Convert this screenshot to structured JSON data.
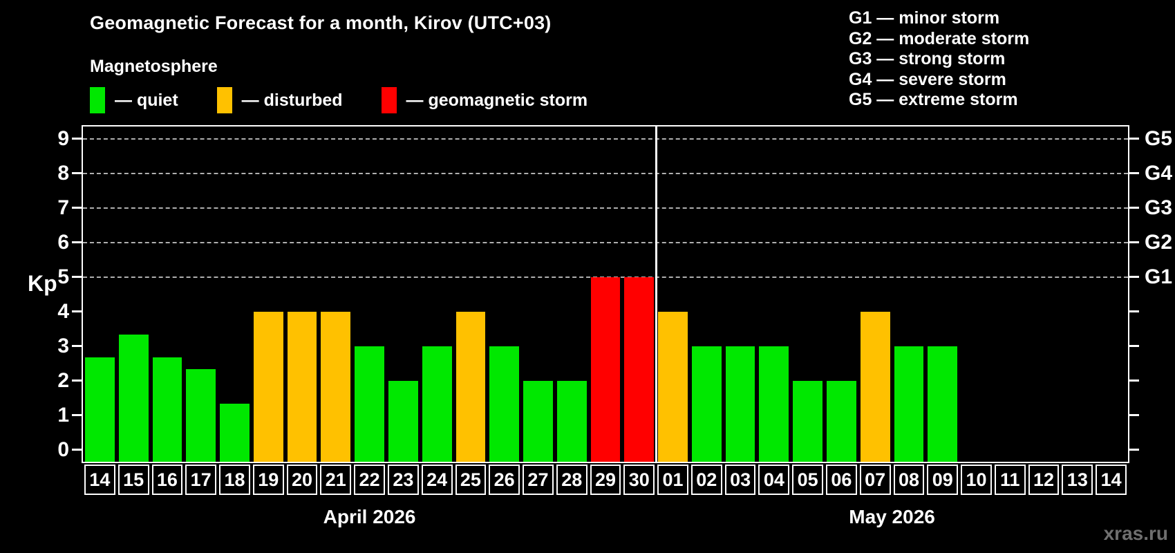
{
  "title": "Geomagnetic Forecast for a month, Kirov (UTC+03)",
  "subtitle": "Magnetosphere",
  "legend": {
    "items": [
      {
        "key": "quiet",
        "label": "— quiet"
      },
      {
        "key": "disturbed",
        "label": "— disturbed"
      },
      {
        "key": "storm",
        "label": "— geomagnetic storm"
      }
    ]
  },
  "storm_scale": {
    "items": [
      {
        "label": "G1 — minor storm"
      },
      {
        "label": "G2 — moderate storm"
      },
      {
        "label": "G3 — strong storm"
      },
      {
        "label": "G4 — severe storm"
      },
      {
        "label": "G5 — extreme storm"
      }
    ]
  },
  "watermark": "xras.ru",
  "chart_data": {
    "type": "bar",
    "title": "Geomagnetic Forecast for a month, Kirov (UTC+03)",
    "ylabel": "Kp",
    "ylim": [
      0,
      9
    ],
    "yticks": [
      0,
      1,
      2,
      3,
      4,
      5,
      6,
      7,
      8,
      9
    ],
    "gridlines_at": [
      5,
      6,
      7,
      8,
      9
    ],
    "grid": "dashed horizontal at G-levels only",
    "legend_position": "top",
    "colors": {
      "quiet": "#00E800",
      "disturbed": "#FFC100",
      "storm": "#FF0000"
    },
    "right_axis_labels": [
      {
        "kp": 5,
        "label": "G1"
      },
      {
        "kp": 6,
        "label": "G2"
      },
      {
        "kp": 7,
        "label": "G3"
      },
      {
        "kp": 8,
        "label": "G4"
      },
      {
        "kp": 9,
        "label": "G5"
      }
    ],
    "months": [
      {
        "label": "April 2026",
        "days": [
          {
            "day": "14",
            "kp": 2.67,
            "category": "quiet"
          },
          {
            "day": "15",
            "kp": 3.33,
            "category": "quiet"
          },
          {
            "day": "16",
            "kp": 2.67,
            "category": "quiet"
          },
          {
            "day": "17",
            "kp": 2.33,
            "category": "quiet"
          },
          {
            "day": "18",
            "kp": 1.33,
            "category": "quiet"
          },
          {
            "day": "19",
            "kp": 4,
            "category": "disturbed"
          },
          {
            "day": "20",
            "kp": 4,
            "category": "disturbed"
          },
          {
            "day": "21",
            "kp": 4,
            "category": "disturbed"
          },
          {
            "day": "22",
            "kp": 3,
            "category": "quiet"
          },
          {
            "day": "23",
            "kp": 2,
            "category": "quiet"
          },
          {
            "day": "24",
            "kp": 3,
            "category": "quiet"
          },
          {
            "day": "25",
            "kp": 4,
            "category": "disturbed"
          },
          {
            "day": "26",
            "kp": 3,
            "category": "quiet"
          },
          {
            "day": "27",
            "kp": 2,
            "category": "quiet"
          },
          {
            "day": "28",
            "kp": 2,
            "category": "quiet"
          },
          {
            "day": "29",
            "kp": 5,
            "category": "storm"
          },
          {
            "day": "30",
            "kp": 5,
            "category": "storm"
          }
        ]
      },
      {
        "label": "May 2026",
        "days": [
          {
            "day": "01",
            "kp": 4,
            "category": "disturbed"
          },
          {
            "day": "02",
            "kp": 3,
            "category": "quiet"
          },
          {
            "day": "03",
            "kp": 3,
            "category": "quiet"
          },
          {
            "day": "04",
            "kp": 3,
            "category": "quiet"
          },
          {
            "day": "05",
            "kp": 2,
            "category": "quiet"
          },
          {
            "day": "06",
            "kp": 2,
            "category": "quiet"
          },
          {
            "day": "07",
            "kp": 4,
            "category": "disturbed"
          },
          {
            "day": "08",
            "kp": 3,
            "category": "quiet"
          },
          {
            "day": "09",
            "kp": 3,
            "category": "quiet"
          },
          {
            "day": "10",
            "kp": null,
            "category": null
          },
          {
            "day": "11",
            "kp": null,
            "category": null
          },
          {
            "day": "12",
            "kp": null,
            "category": null
          },
          {
            "day": "13",
            "kp": null,
            "category": null
          },
          {
            "day": "14",
            "kp": null,
            "category": null
          }
        ]
      }
    ]
  }
}
